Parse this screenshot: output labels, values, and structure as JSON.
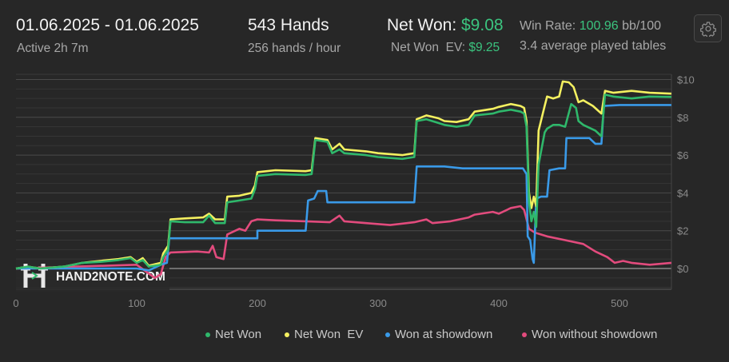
{
  "header": {
    "date_range": "01.06.2025 - 01.06.2025",
    "active": "Active 2h 7m",
    "hands": "543 Hands",
    "hands_per_hour": "256 hands / hour",
    "net_won_label": "Net Won:",
    "net_won_value": "$9.08",
    "net_won_ev_label": "Net Won  EV:",
    "net_won_ev_value": "$9.25",
    "win_rate_label": "Win Rate:",
    "win_rate_value": "100.96",
    "win_rate_unit": "bb/100",
    "tables": "3.4 average played tables"
  },
  "settings_icon": "gear-icon",
  "watermark": "HAND2NOTE.COM",
  "chart_data": {
    "type": "line",
    "xlabel": "",
    "ylabel": "",
    "xlim": [
      0,
      543
    ],
    "ylim": [
      -1,
      10.5
    ],
    "x_ticks": [
      {
        "v": 0,
        "label": "0"
      },
      {
        "v": 100,
        "label": "100"
      },
      {
        "v": 200,
        "label": "200"
      },
      {
        "v": 300,
        "label": "300"
      },
      {
        "v": 400,
        "label": "400"
      },
      {
        "v": 500,
        "label": "500"
      }
    ],
    "y_ticks": [
      {
        "v": 0,
        "label": "$0"
      },
      {
        "v": 2,
        "label": "$2"
      },
      {
        "v": 4,
        "label": "$4"
      },
      {
        "v": 6,
        "label": "$6"
      },
      {
        "v": 8,
        "label": "$8"
      },
      {
        "v": 10,
        "label": "$10"
      }
    ],
    "grid": true,
    "legend_position": "bottom-right",
    "series": [
      {
        "name": "Net Won",
        "color": "#2fb86b",
        "points": [
          [
            0,
            0
          ],
          [
            10,
            0.1
          ],
          [
            20,
            0
          ],
          [
            40,
            0.1
          ],
          [
            55,
            0.3
          ],
          [
            70,
            0.35
          ],
          [
            85,
            0.45
          ],
          [
            95,
            0.55
          ],
          [
            100,
            0.3
          ],
          [
            105,
            0.45
          ],
          [
            110,
            0.1
          ],
          [
            120,
            0.2
          ],
          [
            122,
            0.6
          ],
          [
            126,
            1.0
          ],
          [
            128,
            2.5
          ],
          [
            140,
            2.45
          ],
          [
            155,
            2.45
          ],
          [
            160,
            2.8
          ],
          [
            165,
            2.4
          ],
          [
            173,
            2.4
          ],
          [
            175,
            3.5
          ],
          [
            185,
            3.6
          ],
          [
            195,
            3.7
          ],
          [
            198,
            4.2
          ],
          [
            200,
            4.9
          ],
          [
            215,
            5.0
          ],
          [
            240,
            4.95
          ],
          [
            245,
            5.0
          ],
          [
            248,
            6.8
          ],
          [
            258,
            6.7
          ],
          [
            262,
            6.1
          ],
          [
            268,
            6.3
          ],
          [
            272,
            6.1
          ],
          [
            290,
            6.0
          ],
          [
            300,
            5.9
          ],
          [
            320,
            5.8
          ],
          [
            330,
            5.9
          ],
          [
            332,
            7.8
          ],
          [
            340,
            7.9
          ],
          [
            350,
            7.7
          ],
          [
            355,
            7.6
          ],
          [
            365,
            7.5
          ],
          [
            375,
            7.6
          ],
          [
            380,
            8.1
          ],
          [
            395,
            8.2
          ],
          [
            400,
            8.3
          ],
          [
            410,
            8.4
          ],
          [
            418,
            8.3
          ],
          [
            421,
            8.2
          ],
          [
            423,
            7.5
          ],
          [
            425,
            3.5
          ],
          [
            427,
            2.5
          ],
          [
            429,
            3.0
          ],
          [
            431,
            2.2
          ],
          [
            433,
            5.5
          ],
          [
            438,
            7.2
          ],
          [
            440,
            7.4
          ],
          [
            445,
            7.6
          ],
          [
            450,
            7.6
          ],
          [
            455,
            7.5
          ],
          [
            460,
            8.7
          ],
          [
            464,
            8.5
          ],
          [
            466,
            7.8
          ],
          [
            470,
            7.6
          ],
          [
            480,
            7.3
          ],
          [
            485,
            7.0
          ],
          [
            488,
            9.2
          ],
          [
            495,
            9.1
          ],
          [
            510,
            9.0
          ],
          [
            525,
            9.1
          ],
          [
            543,
            9.08
          ]
        ]
      },
      {
        "name": "Net Won  EV",
        "color": "#f4f060",
        "points": [
          [
            0,
            0
          ],
          [
            10,
            0.1
          ],
          [
            20,
            0
          ],
          [
            40,
            0.1
          ],
          [
            55,
            0.3
          ],
          [
            70,
            0.4
          ],
          [
            85,
            0.5
          ],
          [
            95,
            0.6
          ],
          [
            100,
            0.35
          ],
          [
            105,
            0.55
          ],
          [
            110,
            0.15
          ],
          [
            120,
            0.3
          ],
          [
            122,
            0.8
          ],
          [
            126,
            1.2
          ],
          [
            128,
            2.6
          ],
          [
            140,
            2.65
          ],
          [
            155,
            2.7
          ],
          [
            160,
            2.9
          ],
          [
            165,
            2.6
          ],
          [
            173,
            2.6
          ],
          [
            175,
            3.8
          ],
          [
            185,
            3.85
          ],
          [
            195,
            4.0
          ],
          [
            198,
            4.4
          ],
          [
            200,
            5.1
          ],
          [
            215,
            5.2
          ],
          [
            240,
            5.15
          ],
          [
            245,
            5.2
          ],
          [
            248,
            6.9
          ],
          [
            258,
            6.8
          ],
          [
            262,
            6.3
          ],
          [
            268,
            6.6
          ],
          [
            272,
            6.3
          ],
          [
            290,
            6.2
          ],
          [
            300,
            6.1
          ],
          [
            320,
            6.0
          ],
          [
            330,
            6.1
          ],
          [
            332,
            7.9
          ],
          [
            340,
            8.1
          ],
          [
            350,
            7.95
          ],
          [
            355,
            7.8
          ],
          [
            365,
            7.75
          ],
          [
            375,
            7.9
          ],
          [
            380,
            8.3
          ],
          [
            395,
            8.45
          ],
          [
            400,
            8.55
          ],
          [
            410,
            8.7
          ],
          [
            418,
            8.6
          ],
          [
            421,
            8.5
          ],
          [
            423,
            7.8
          ],
          [
            425,
            4.0
          ],
          [
            427,
            3.2
          ],
          [
            429,
            3.8
          ],
          [
            431,
            3.3
          ],
          [
            433,
            7.3
          ],
          [
            438,
            8.6
          ],
          [
            440,
            9.1
          ],
          [
            445,
            9.0
          ],
          [
            450,
            9.1
          ],
          [
            453,
            9.9
          ],
          [
            458,
            9.85
          ],
          [
            462,
            9.6
          ],
          [
            466,
            8.8
          ],
          [
            470,
            8.9
          ],
          [
            478,
            8.6
          ],
          [
            485,
            8.2
          ],
          [
            488,
            9.4
          ],
          [
            495,
            9.3
          ],
          [
            510,
            9.4
          ],
          [
            525,
            9.3
          ],
          [
            543,
            9.25
          ]
        ]
      },
      {
        "name": "Won at showdown",
        "color": "#3a9ae8",
        "points": [
          [
            0,
            0
          ],
          [
            60,
            0
          ],
          [
            100,
            0
          ],
          [
            110,
            -0.1
          ],
          [
            120,
            0.2
          ],
          [
            125,
            0.3
          ],
          [
            127,
            1.6
          ],
          [
            200,
            1.6
          ],
          [
            200,
            2.0
          ],
          [
            240,
            2.0
          ],
          [
            242,
            3.6
          ],
          [
            247,
            3.7
          ],
          [
            250,
            4.1
          ],
          [
            257,
            4.1
          ],
          [
            258,
            3.5
          ],
          [
            330,
            3.5
          ],
          [
            332,
            5.4
          ],
          [
            355,
            5.4
          ],
          [
            370,
            5.3
          ],
          [
            420,
            5.3
          ],
          [
            423,
            5.0
          ],
          [
            424,
            1.7
          ],
          [
            426,
            1.5
          ],
          [
            428,
            0.5
          ],
          [
            429,
            0.3
          ],
          [
            431,
            3.7
          ],
          [
            435,
            3.8
          ],
          [
            440,
            3.8
          ],
          [
            442,
            5.2
          ],
          [
            450,
            5.3
          ],
          [
            455,
            5.3
          ],
          [
            456,
            6.9
          ],
          [
            475,
            6.9
          ],
          [
            480,
            6.6
          ],
          [
            485,
            6.6
          ],
          [
            487,
            8.6
          ],
          [
            500,
            8.65
          ],
          [
            543,
            8.65
          ]
        ]
      },
      {
        "name": "Won without showdown",
        "color": "#e24b7d",
        "points": [
          [
            0,
            0
          ],
          [
            50,
            0.1
          ],
          [
            100,
            0.2
          ],
          [
            115,
            -0.5
          ],
          [
            120,
            -0.3
          ],
          [
            124,
            0.6
          ],
          [
            128,
            0.85
          ],
          [
            150,
            0.9
          ],
          [
            160,
            0.85
          ],
          [
            163,
            1.2
          ],
          [
            166,
            0.6
          ],
          [
            172,
            0.5
          ],
          [
            175,
            1.8
          ],
          [
            185,
            2.1
          ],
          [
            190,
            2.0
          ],
          [
            195,
            2.5
          ],
          [
            200,
            2.6
          ],
          [
            215,
            2.55
          ],
          [
            240,
            2.5
          ],
          [
            260,
            2.45
          ],
          [
            268,
            2.8
          ],
          [
            272,
            2.5
          ],
          [
            290,
            2.4
          ],
          [
            310,
            2.3
          ],
          [
            330,
            2.45
          ],
          [
            340,
            2.6
          ],
          [
            345,
            2.4
          ],
          [
            360,
            2.5
          ],
          [
            375,
            2.7
          ],
          [
            380,
            2.85
          ],
          [
            395,
            3.0
          ],
          [
            400,
            2.9
          ],
          [
            410,
            3.2
          ],
          [
            418,
            3.3
          ],
          [
            421,
            3.1
          ],
          [
            425,
            2.1
          ],
          [
            430,
            1.9
          ],
          [
            440,
            1.7
          ],
          [
            455,
            1.5
          ],
          [
            470,
            1.3
          ],
          [
            480,
            0.9
          ],
          [
            490,
            0.6
          ],
          [
            496,
            0.3
          ],
          [
            503,
            0.4
          ],
          [
            510,
            0.3
          ],
          [
            525,
            0.2
          ],
          [
            543,
            0.3
          ]
        ]
      }
    ]
  }
}
